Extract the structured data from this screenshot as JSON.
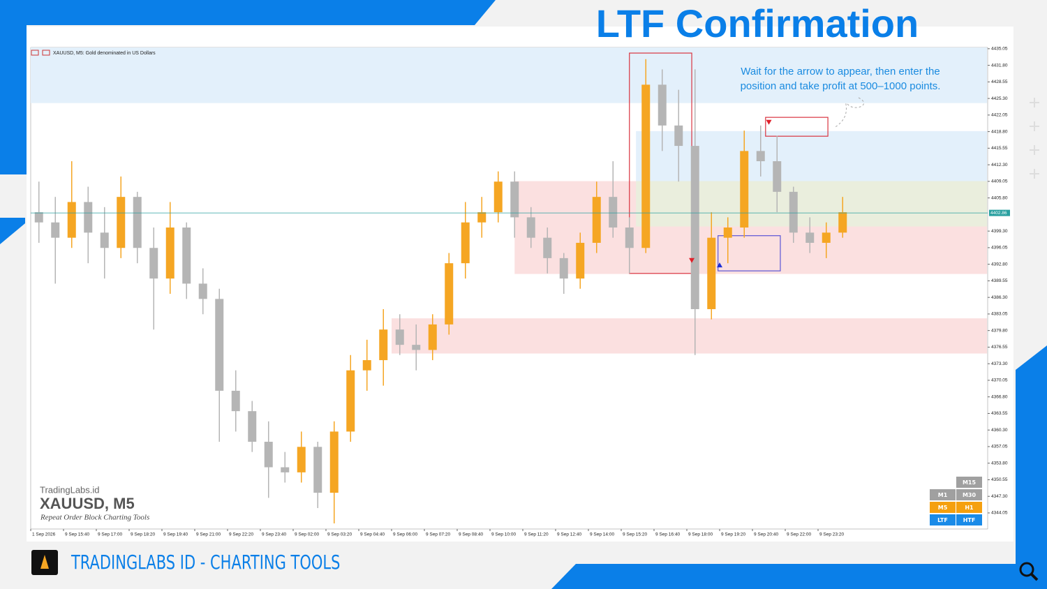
{
  "header": {
    "title": "LTF Confirmation"
  },
  "footer": {
    "brand": "TRADINGLABS ID - CHARTING TOOLS"
  },
  "chart_data": {
    "type": "candlestick",
    "symbol_label": "XAUUSD, M5:  Gold denominated in US Dollars",
    "annotation": [
      "Wait for the arrow to appear, then enter the",
      "position and take profit at 500–1000 points."
    ],
    "watermark": {
      "site": "TradingLabs.id",
      "symbol": "XAUUSD, M5",
      "tagline": "Repeat Order Block Charting Tools"
    },
    "categories": [
      "1 Sep 2026",
      null,
      "9 Sep 15:40",
      null,
      "9 Sep 17:00",
      null,
      "9 Sep 18:20",
      null,
      "9 Sep 19:40",
      null,
      "9 Sep 21:00",
      null,
      "9 Sep 22:20",
      null,
      "9 Sep 23:40",
      null,
      "9 Sep 02:00",
      null,
      "9 Sep 03:20",
      null,
      "9 Sep 04:40",
      null,
      "9 Sep 06:00",
      null,
      "9 Sep 07:20",
      null,
      "9 Sep 08:40",
      null,
      "9 Sep 10:00",
      null,
      "9 Sep 11:20",
      null,
      "9 Sep 12:40",
      null,
      "9 Sep 14:00",
      null,
      "9 Sep 15:20",
      null,
      "9 Sep 16:40",
      null,
      "9 Sep 18:00",
      null,
      "9 Sep 19:20",
      null,
      "9 Sep 20:40",
      null,
      "9 Sep 22:00",
      null,
      "9 Sep 23:20",
      null
    ],
    "open": [
      4403,
      4401,
      4398,
      4405,
      4399,
      4396,
      4406,
      4396,
      4390,
      4400,
      4389,
      4386,
      4368,
      4364,
      4358,
      4353,
      4352,
      4357,
      4348,
      4360,
      4372,
      4374,
      4380,
      4377,
      4376,
      4381,
      4393,
      4401,
      4403,
      4409,
      4402,
      4398,
      4394,
      4390,
      4397,
      4406,
      4400,
      4396,
      4428,
      4420,
      4416,
      4384,
      4398,
      4400,
      4415,
      4413,
      4407,
      4399,
      4397,
      4399
    ],
    "high": [
      4409,
      4406,
      4413,
      4408,
      4404,
      4410,
      4407,
      4400,
      4405,
      4401,
      4392,
      4388,
      4372,
      4366,
      4362,
      4356,
      4360,
      4358,
      4362,
      4375,
      4378,
      4384,
      4383,
      4381,
      4383,
      4395,
      4405,
      4406,
      4411,
      4411,
      4404,
      4400,
      4395,
      4399,
      4409,
      4413,
      4402,
      4433,
      4431,
      4427,
      4431,
      4403,
      4402,
      4419,
      4420,
      4418,
      4408,
      4402,
      4401,
      4406
    ],
    "low": [
      4397,
      4389,
      4396,
      4393,
      4390,
      4394,
      4393,
      4380,
      4387,
      4386,
      4383,
      4358,
      4360,
      4356,
      4347,
      4350,
      4350,
      4345,
      4342,
      4358,
      4368,
      4369,
      4375,
      4372,
      4374,
      4379,
      4390,
      4398,
      4401,
      4398,
      4396,
      4391,
      4387,
      4388,
      4395,
      4398,
      4391,
      4395,
      4415,
      4409,
      4375,
      4382,
      4393,
      4398,
      4410,
      4403,
      4397,
      4395,
      4394,
      4398
    ],
    "close": [
      4401,
      4398,
      4405,
      4399,
      4396,
      4406,
      4396,
      4390,
      4400,
      4389,
      4386,
      4368,
      4364,
      4358,
      4353,
      4352,
      4357,
      4348,
      4360,
      4372,
      4374,
      4380,
      4377,
      4376,
      4381,
      4393,
      4401,
      4403,
      4409,
      4402,
      4398,
      4394,
      4390,
      4397,
      4406,
      4400,
      4396,
      4428,
      4420,
      4416,
      4384,
      4398,
      4400,
      4415,
      4413,
      4407,
      4399,
      4397,
      4399,
      4403
    ],
    "up_color": "#f5a623",
    "down_color": "#b5b5b5",
    "ylim": [
      4340.9,
      4435.3
    ],
    "yticks": [
      4435.05,
      {
        "value": 4431.8,
        "label": "4431.80"
      },
      4428.55,
      {
        "value": 4425.3,
        "label": "4425.30"
      },
      4422.05,
      {
        "value": 4418.8,
        "label": "4418.80"
      },
      4415.55,
      {
        "value": 4412.3,
        "label": "4412.30"
      },
      4409.05,
      {
        "value": 4405.8,
        "label": "4405.80"
      },
      {
        "value": 4399.3,
        "label": "4399.30"
      },
      4396.05,
      {
        "value": 4392.8,
        "label": "4392.80"
      },
      4389.55,
      {
        "value": 4386.3,
        "label": "4386.30"
      },
      4383.05,
      {
        "value": 4379.8,
        "label": "4379.80"
      },
      4376.55,
      {
        "value": 4373.3,
        "label": "4373.30"
      },
      4370.05,
      {
        "value": 4366.8,
        "label": "4366.80"
      },
      4363.55,
      {
        "value": 4360.3,
        "label": "4360.30"
      },
      4357.05,
      {
        "value": 4353.8,
        "label": "4353.80"
      },
      4350.55,
      {
        "value": 4347.3,
        "label": "4347.30"
      },
      4344.05
    ],
    "current_price": 4402.86,
    "current_price_color": "#2aa0a0",
    "zones": [
      {
        "x": [
          -0.5,
          57.8
        ],
        "y": [
          4424.4,
          4435.3
        ],
        "fill": "#e3f0fb"
      },
      {
        "x": [
          29.0,
          57.8
        ],
        "y": [
          4390.9,
          4409.1
        ],
        "fill": "#fbe0e0"
      },
      {
        "x": [
          36.4,
          57.8
        ],
        "y": [
          4409.1,
          4418.9
        ],
        "fill": "#e3f0fb"
      },
      {
        "x": [
          36.4,
          57.8
        ],
        "y": [
          4400.2,
          4409.1
        ],
        "fill": "#eaeedd"
      },
      {
        "x": [
          21.5,
          57.8
        ],
        "y": [
          4375.3,
          4382.2
        ],
        "fill": "#fbe0e0"
      },
      {
        "x": [
          36.0,
          39.8
        ],
        "y": [
          4391.0,
          4434.2
        ],
        "stroke": "#d9333f"
      },
      {
        "x": [
          44.3,
          48.1
        ],
        "y": [
          4417.9,
          4421.6
        ],
        "stroke": "#d9333f"
      },
      {
        "x": [
          41.4,
          45.2
        ],
        "y": [
          4391.5,
          4398.4
        ],
        "stroke": "#5a55d6"
      }
    ],
    "signals": [
      {
        "x": 39.8,
        "price": 4393.6,
        "direction": "down",
        "color": "#e0202a"
      },
      {
        "x": 44.5,
        "price": 4420.7,
        "direction": "down",
        "color": "#e0202a"
      },
      {
        "x": 41.5,
        "price": 4392.6,
        "direction": "up",
        "color": "#1c2fd6"
      }
    ],
    "timeframe_buttons": [
      {
        "label": "M15",
        "color": "#a0a0a0"
      },
      {
        "label": "M1",
        "color": "#a0a0a0"
      },
      {
        "label": "M30",
        "color": "#a0a0a0"
      },
      {
        "label": "M5",
        "color": "#f5a00f"
      },
      {
        "label": "H1",
        "color": "#f5a00f"
      },
      {
        "label": "LTF",
        "color": "#1a8be8"
      },
      {
        "label": "HTF",
        "color": "#1a8be8"
      }
    ]
  }
}
